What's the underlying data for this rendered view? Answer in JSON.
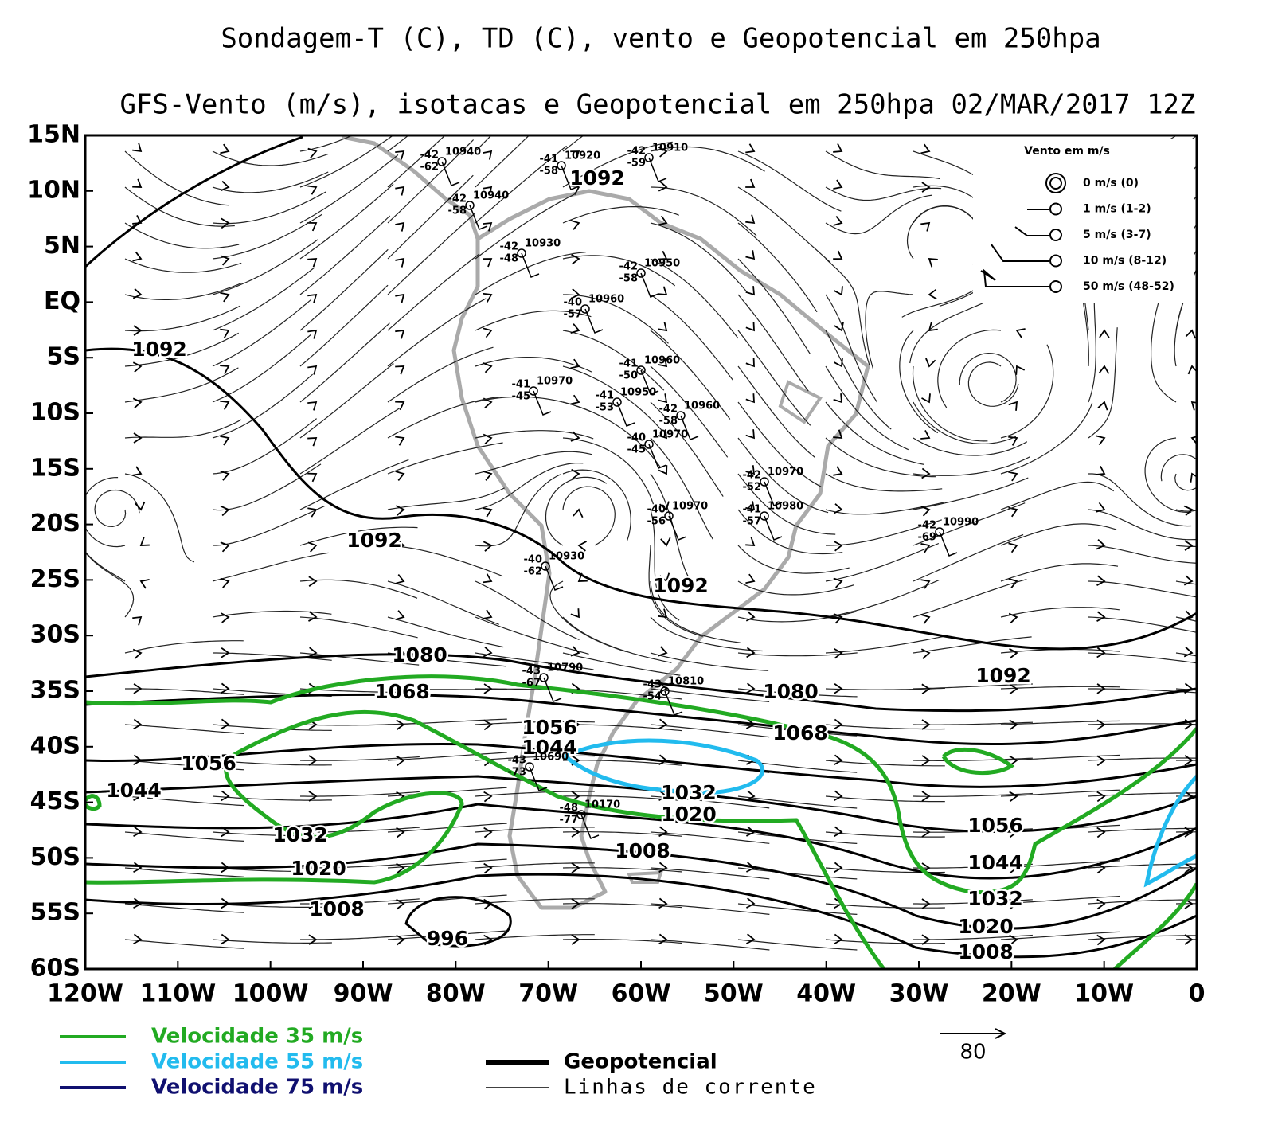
{
  "title": "Sondagem-T (C), TD (C), vento e Geopotencial em 250hpa",
  "subtitle": "GFS-Vento (m/s), isotacas e Geopotencial em 250hpa 02/MAR/2017 12Z",
  "axes": {
    "lat_labels": [
      "15N",
      "10N",
      "5N",
      "EQ",
      "5S",
      "10S",
      "15S",
      "20S",
      "25S",
      "30S",
      "35S",
      "40S",
      "45S",
      "50S",
      "55S",
      "60S"
    ],
    "lon_labels": [
      "120W",
      "110W",
      "100W",
      "90W",
      "80W",
      "70W",
      "60W",
      "50W",
      "40W",
      "30W",
      "20W",
      "10W",
      "0"
    ]
  },
  "contour_labels": [
    "1092",
    "1092",
    "1080",
    "1068",
    "1056",
    "1044",
    "1032",
    "1020",
    "1008",
    "996",
    "1056",
    "1044",
    "1032",
    "1020",
    "1008",
    "1080",
    "1068",
    "1092",
    "1056",
    "1044",
    "1032",
    "1020",
    "1008",
    "1092",
    "1092"
  ],
  "stations": [
    {
      "t": "-42",
      "td": "-62",
      "z": "10940"
    },
    {
      "t": "-41",
      "td": "-58",
      "z": "10920"
    },
    {
      "t": "-42",
      "td": "-59",
      "z": "10910"
    },
    {
      "t": "-42",
      "td": "-58",
      "z": "10940"
    },
    {
      "t": "-42",
      "td": "-48",
      "z": "10930"
    },
    {
      "t": "-42",
      "td": "-58",
      "z": "10950"
    },
    {
      "t": "-40",
      "td": "-57",
      "z": "10960"
    },
    {
      "t": "-41",
      "td": "-50",
      "z": "10960"
    },
    {
      "t": "-41",
      "td": "-45",
      "z": "10970"
    },
    {
      "t": "-41",
      "td": "-53",
      "z": "10950"
    },
    {
      "t": "-42",
      "td": "-58",
      "z": "10960"
    },
    {
      "t": "-40",
      "td": "-45",
      "z": "10970"
    },
    {
      "t": "-42",
      "td": "-52",
      "z": "10970"
    },
    {
      "t": "-40",
      "td": "-56",
      "z": "10970"
    },
    {
      "t": "-41",
      "td": "-57",
      "z": "10980"
    },
    {
      "t": "-40",
      "td": "-62",
      "z": "10930"
    },
    {
      "t": "-43",
      "td": "-67",
      "z": "10790"
    },
    {
      "t": "-43",
      "td": "-54",
      "z": "10810"
    },
    {
      "t": "-42",
      "td": "-69",
      "z": "10990"
    },
    {
      "t": "-48",
      "td": "-77",
      "z": "10170"
    },
    {
      "t": "-43",
      "td": "-73",
      "z": "10690"
    }
  ],
  "wind_legend": {
    "title": "Vento em m/s",
    "items": [
      "0 m/s (0)",
      "1 m/s (1-2)",
      "5 m/s (3-7)",
      "10 m/s (8-12)",
      "50 m/s (48-52)"
    ]
  },
  "scale_arrow": "80",
  "legend": {
    "isotachs": [
      {
        "label": "Velocidade 35 m/s",
        "color": "#22aa22"
      },
      {
        "label": "Velocidade 55 m/s",
        "color": "#22bbee"
      },
      {
        "label": "Velocidade 75 m/s",
        "color": "#101070"
      }
    ],
    "lines": [
      {
        "label": "Geopotencial",
        "color": "#000000"
      },
      {
        "label": "Linhas de corrente",
        "color": "#000000"
      }
    ]
  }
}
